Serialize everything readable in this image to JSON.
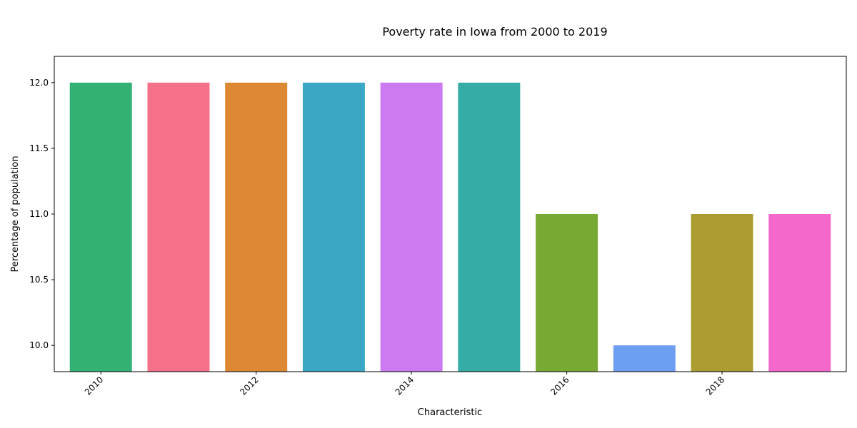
{
  "chart_data": {
    "type": "bar",
    "title": "Poverty rate in Iowa from 2000 to 2019",
    "xlabel": "Characteristic",
    "ylabel": "Percentage of population",
    "x": [
      2010,
      2011,
      2012,
      2013,
      2014,
      2015,
      2016,
      2017,
      2018,
      2019
    ],
    "values": [
      12.0,
      12.0,
      12.0,
      12.0,
      12.0,
      12.0,
      11.0,
      10.0,
      11.0,
      11.0
    ],
    "colors": [
      "#33b074",
      "#f5718a",
      "#dd8933",
      "#3aa8c4",
      "#cc7af2",
      "#36ada4",
      "#78a933",
      "#6e9ef1",
      "#ac9d33",
      "#f468cb"
    ],
    "ylim": [
      9.8,
      12.2
    ],
    "yticks": [
      "10.0",
      "10.5",
      "11.0",
      "11.5",
      "12.0"
    ],
    "xticks": [
      "2010",
      "2012",
      "2014",
      "2016",
      "2018"
    ],
    "grid": false,
    "legend": "none"
  }
}
